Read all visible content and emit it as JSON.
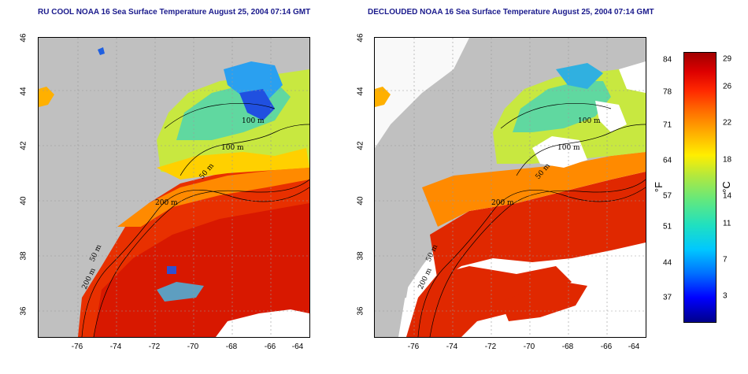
{
  "left_map": {
    "title": "RU COOL NOAA 16 Sea Surface Temperature August 25, 2004 07:14 GMT",
    "contour_labels": [
      "100 m",
      "100 m",
      "50 m",
      "200 m",
      "50 m",
      "200 m"
    ]
  },
  "right_map": {
    "title": "DECLOUDED NOAA 16 Sea Surface Temperature August 25, 2004 07:14 GMT",
    "contour_labels": [
      "100 m",
      "100 m",
      "50 m",
      "200 m",
      "50 m",
      "200 m"
    ]
  },
  "axes": {
    "x_ticks": [
      "-76",
      "-74",
      "-72",
      "-70",
      "-68",
      "-66",
      "-64"
    ],
    "y_ticks": [
      "46",
      "44",
      "42",
      "40",
      "38",
      "36"
    ]
  },
  "colorbar": {
    "fahrenheit_ticks": [
      "84",
      "78",
      "71",
      "64",
      "57",
      "51",
      "44",
      "37"
    ],
    "celsius_ticks": [
      "29",
      "26",
      "22",
      "18",
      "14",
      "11",
      "7",
      "3"
    ],
    "fahrenheit_unit": "°F",
    "celsius_unit": "°C"
  },
  "colors": {
    "land": "#c0c0c0",
    "cloud_mask": "#ffffff",
    "warm": "#e82000",
    "cool": "#30a0ff"
  }
}
